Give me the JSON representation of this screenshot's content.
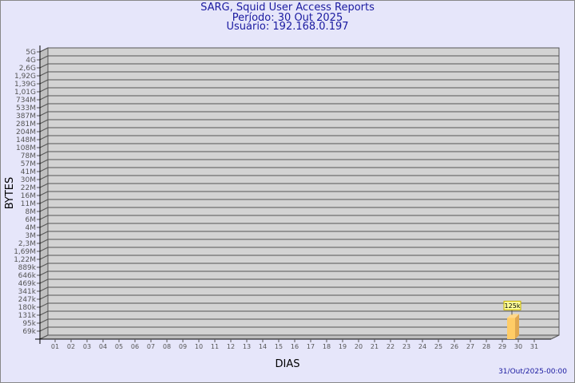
{
  "header": {
    "title": "SARG, Squid User Access Reports",
    "period": "Período: 30 Out 2025",
    "user": "Usuário: 192.168.0.197"
  },
  "footer": {
    "timestamp": "31/Out/2025-00:00"
  },
  "chart_data": {
    "type": "bar",
    "xlabel": "DIAS",
    "ylabel": "BYTES",
    "categories": [
      "01",
      "02",
      "03",
      "04",
      "05",
      "06",
      "07",
      "08",
      "09",
      "10",
      "11",
      "12",
      "13",
      "14",
      "15",
      "16",
      "17",
      "18",
      "19",
      "20",
      "21",
      "22",
      "23",
      "24",
      "25",
      "26",
      "27",
      "28",
      "29",
      "30",
      "31"
    ],
    "values": [
      null,
      null,
      null,
      null,
      null,
      null,
      null,
      null,
      null,
      null,
      null,
      null,
      null,
      null,
      null,
      null,
      null,
      null,
      null,
      null,
      null,
      null,
      null,
      null,
      null,
      null,
      null,
      null,
      null,
      125000,
      null
    ],
    "data_labels": {
      "30": "125k"
    },
    "y_ticks": [
      "5G",
      "4G",
      "2,6G",
      "1,92G",
      "1,39G",
      "1,01G",
      "734M",
      "533M",
      "387M",
      "281M",
      "204M",
      "148M",
      "108M",
      "78M",
      "57M",
      "41M",
      "30M",
      "22M",
      "16M",
      "11M",
      "8M",
      "6M",
      "4M",
      "3M",
      "2,3M",
      "1,69M",
      "1,22M",
      "889k",
      "646k",
      "469k",
      "341k",
      "247k",
      "180k",
      "131k",
      "95k",
      "69k"
    ],
    "y_tick_values": [
      5000000000.0,
      4000000000.0,
      2600000000.0,
      1920000000.0,
      1390000000.0,
      1010000000.0,
      734000000.0,
      533000000.0,
      387000000.0,
      281000000.0,
      204000000.0,
      148000000.0,
      108000000.0,
      78000000.0,
      57000000.0,
      41000000.0,
      30000000.0,
      22000000.0,
      16000000.0,
      11000000.0,
      8000000.0,
      6000000.0,
      4000000.0,
      3000000.0,
      2300000.0,
      1690000.0,
      1220000.0,
      889000.0,
      646000.0,
      469000.0,
      341000.0,
      247000.0,
      180000.0,
      131000.0,
      95000.0,
      69000.0
    ],
    "y_scale": "log",
    "grid": true,
    "bar_color": "#ffcc66",
    "label_box_color": "#ffff99",
    "background": "#e6e6fa",
    "plot_color": "#d3d3d3"
  }
}
